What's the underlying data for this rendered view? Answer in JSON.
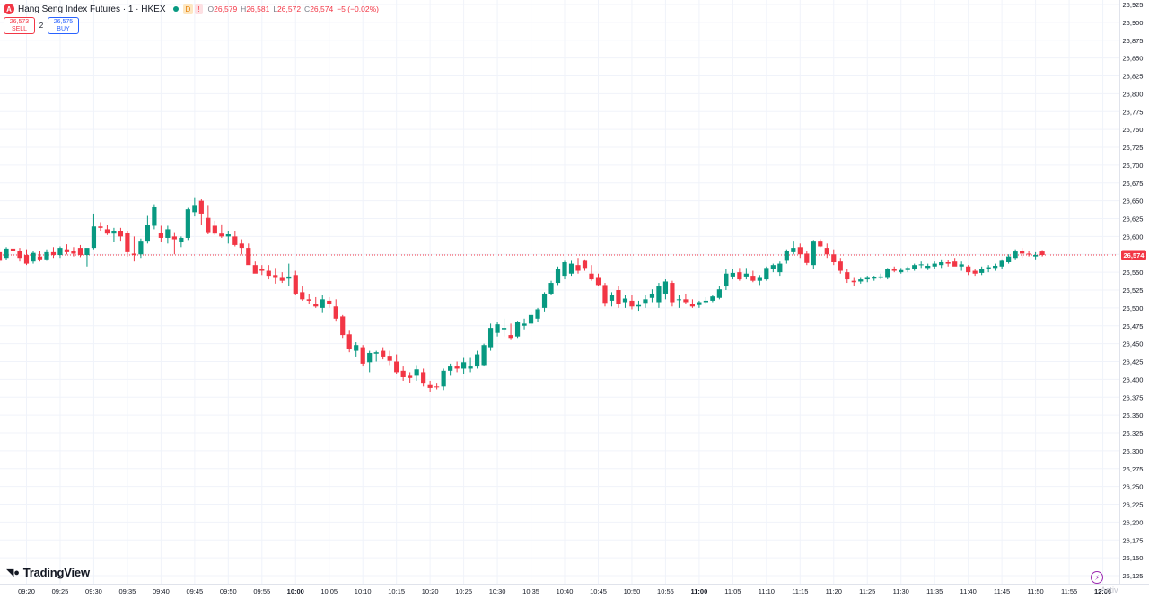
{
  "header": {
    "icon_letter": "A",
    "title": "Hang Seng Index Futures · 1 · HKEX",
    "badge_d": "D",
    "badge_alert": "!",
    "o_label": "O",
    "o_value": "26,579",
    "h_label": "H",
    "h_value": "26,581",
    "l_label": "L",
    "l_value": "26,572",
    "c_label": "C",
    "c_value": "26,574",
    "change": "−5 (−0.02%)"
  },
  "trade": {
    "sell_price": "26,573",
    "sell_label": "SELL",
    "spread": "2",
    "buy_price": "26,575",
    "buy_label": "BUY"
  },
  "branding": {
    "logo_text": "TradingView",
    "watermark": "Activ"
  },
  "colors": {
    "up": "#089981",
    "down": "#f23645",
    "grid": "#f0f3fa",
    "axis_text": "#131722"
  },
  "chart_data": {
    "type": "candlestick",
    "title": "Hang Seng Index Futures · 1 · HKEX",
    "xlabel": "",
    "ylabel": "",
    "ylim": [
      26125,
      26925
    ],
    "y_ticks": [
      "26,925",
      "26,900",
      "26,875",
      "26,850",
      "26,825",
      "26,800",
      "26,775",
      "26,750",
      "26,725",
      "26,700",
      "26,675",
      "26,650",
      "26,625",
      "26,600",
      "26,575",
      "26,550",
      "26,525",
      "26,500",
      "26,475",
      "26,450",
      "26,425",
      "26,400",
      "26,375",
      "26,350",
      "26,325",
      "26,300",
      "26,275",
      "26,250",
      "26,225",
      "26,200",
      "26,175",
      "26,150",
      "26,125"
    ],
    "x_ticks": [
      "09:20",
      "09:25",
      "09:30",
      "09:35",
      "09:40",
      "09:45",
      "09:50",
      "09:55",
      "10:00",
      "10:05",
      "10:10",
      "10:15",
      "10:20",
      "10:25",
      "10:30",
      "10:35",
      "10:40",
      "10:45",
      "10:50",
      "10:55",
      "11:00",
      "11:05",
      "11:10",
      "11:15",
      "11:20",
      "11:25",
      "11:30",
      "11:35",
      "11:40",
      "11:45",
      "11:50",
      "11:55",
      "12:00"
    ],
    "x_ticks_bold": [
      "10:00",
      "11:00",
      "12:00"
    ],
    "start_time": "09:16",
    "last_price": 26574,
    "last_price_label": "26,574",
    "grid": true,
    "candles": [
      [
        26578,
        26584,
        26563,
        26566
      ],
      [
        26570,
        26585,
        26567,
        26583
      ],
      [
        26583,
        26593,
        26575,
        26580
      ],
      [
        26580,
        26584,
        26565,
        26570
      ],
      [
        26574,
        26582,
        26560,
        26562
      ],
      [
        26565,
        26580,
        26562,
        26577
      ],
      [
        26572,
        26580,
        26565,
        26568
      ],
      [
        26568,
        26582,
        26566,
        26578
      ],
      [
        26578,
        26585,
        26570,
        26574
      ],
      [
        26574,
        26586,
        26570,
        26584
      ],
      [
        26582,
        26589,
        26575,
        26578
      ],
      [
        26580,
        26585,
        26572,
        26576
      ],
      [
        26584,
        26588,
        26571,
        26574
      ],
      [
        26574,
        26578,
        26558,
        26584
      ],
      [
        26584,
        26632,
        26582,
        26614
      ],
      [
        26614,
        26620,
        26608,
        26612
      ],
      [
        26610,
        26616,
        26602,
        26604
      ],
      [
        26604,
        26612,
        26592,
        26608
      ],
      [
        26608,
        26612,
        26594,
        26600
      ],
      [
        26605,
        26608,
        26572,
        26578
      ],
      [
        26576,
        26600,
        26565,
        26574
      ],
      [
        26575,
        26597,
        26570,
        26594
      ],
      [
        26594,
        26630,
        26590,
        26616
      ],
      [
        26615,
        26645,
        26610,
        26642
      ],
      [
        26605,
        26615,
        26592,
        26598
      ],
      [
        26598,
        26615,
        26590,
        26610
      ],
      [
        26600,
        26606,
        26575,
        26596
      ],
      [
        26592,
        26600,
        26585,
        26598
      ],
      [
        26598,
        26640,
        26595,
        26638
      ],
      [
        26634,
        26655,
        26628,
        26644
      ],
      [
        26650,
        26652,
        26616,
        26632
      ],
      [
        26626,
        26644,
        26603,
        26606
      ],
      [
        26615,
        26622,
        26602,
        26604
      ],
      [
        26604,
        26617,
        26598,
        26600
      ],
      [
        26600,
        26608,
        26590,
        26603
      ],
      [
        26600,
        26608,
        26586,
        26588
      ],
      [
        26590,
        26596,
        26575,
        26584
      ],
      [
        26584,
        26590,
        26563,
        26560
      ],
      [
        26560,
        26565,
        26552,
        26548
      ],
      [
        26555,
        26560,
        26546,
        26552
      ],
      [
        26552,
        26560,
        26540,
        26545
      ],
      [
        26546,
        26556,
        26534,
        26542
      ],
      [
        26542,
        26550,
        26535,
        26538
      ],
      [
        26541,
        26562,
        26530,
        26544
      ],
      [
        26546,
        26552,
        26518,
        26520
      ],
      [
        26522,
        26530,
        26510,
        26512
      ],
      [
        26512,
        26520,
        26505,
        26510
      ],
      [
        26505,
        26515,
        26500,
        26502
      ],
      [
        26500,
        26518,
        26494,
        26512
      ],
      [
        26510,
        26515,
        26500,
        26505
      ],
      [
        26502,
        26512,
        26482,
        26485
      ],
      [
        26488,
        26490,
        26458,
        26462
      ],
      [
        26463,
        26468,
        26438,
        26442
      ],
      [
        26440,
        26452,
        26432,
        26448
      ],
      [
        26445,
        26448,
        26418,
        26422
      ],
      [
        26424,
        26440,
        26410,
        26437
      ],
      [
        26436,
        26440,
        26425,
        26438
      ],
      [
        26440,
        26445,
        26428,
        26432
      ],
      [
        26433,
        26440,
        26420,
        26426
      ],
      [
        26425,
        26435,
        26408,
        26410
      ],
      [
        26412,
        26418,
        26398,
        26403
      ],
      [
        26405,
        26410,
        26395,
        26402
      ],
      [
        26405,
        26420,
        26398,
        26414
      ],
      [
        26410,
        26415,
        26390,
        26394
      ],
      [
        26392,
        26398,
        26382,
        26388
      ],
      [
        26390,
        26394,
        26386,
        26389
      ],
      [
        26390,
        26415,
        26385,
        26412
      ],
      [
        26412,
        26422,
        26405,
        26418
      ],
      [
        26418,
        26425,
        26410,
        26415
      ],
      [
        26415,
        26430,
        26408,
        26424
      ],
      [
        26415,
        26430,
        26410,
        26418
      ],
      [
        26418,
        26440,
        26415,
        26435
      ],
      [
        26420,
        26450,
        26418,
        26448
      ],
      [
        26445,
        26478,
        26440,
        26472
      ],
      [
        26465,
        26480,
        26460,
        26477
      ],
      [
        26470,
        26485,
        26460,
        26472
      ],
      [
        26462,
        26478,
        26455,
        26458
      ],
      [
        26460,
        26482,
        26458,
        26480
      ],
      [
        26475,
        26485,
        26470,
        26478
      ],
      [
        26478,
        26495,
        26475,
        26490
      ],
      [
        26485,
        26500,
        26480,
        26498
      ],
      [
        26500,
        26522,
        26495,
        26520
      ],
      [
        26520,
        26538,
        26518,
        26535
      ],
      [
        26535,
        26558,
        26532,
        26554
      ],
      [
        26545,
        26566,
        26540,
        26564
      ],
      [
        26548,
        26566,
        26545,
        26562
      ],
      [
        26560,
        26570,
        26548,
        26552
      ],
      [
        26566,
        26568,
        26552,
        26556
      ],
      [
        26548,
        26560,
        26538,
        26540
      ],
      [
        26542,
        26548,
        26530,
        26532
      ],
      [
        26532,
        26535,
        26502,
        26507
      ],
      [
        26510,
        26522,
        26502,
        26518
      ],
      [
        26525,
        26530,
        26500,
        26505
      ],
      [
        26508,
        26518,
        26500,
        26513
      ],
      [
        26510,
        26518,
        26498,
        26502
      ],
      [
        26502,
        26510,
        26496,
        26504
      ],
      [
        26507,
        26518,
        26500,
        26512
      ],
      [
        26514,
        26526,
        26508,
        26520
      ],
      [
        26508,
        26535,
        26500,
        26530
      ],
      [
        26520,
        26540,
        26512,
        26537
      ],
      [
        26535,
        26538,
        26502,
        26508
      ],
      [
        26512,
        26518,
        26500,
        26512
      ],
      [
        26512,
        26520,
        26505,
        26508
      ],
      [
        26505,
        26512,
        26500,
        26502
      ],
      [
        26504,
        26510,
        26500,
        26508
      ],
      [
        26508,
        26515,
        26505,
        26510
      ],
      [
        26510,
        26518,
        26508,
        26516
      ],
      [
        26514,
        26530,
        26512,
        26526
      ],
      [
        26530,
        26555,
        26525,
        26548
      ],
      [
        26544,
        26555,
        26540,
        26549
      ],
      [
        26550,
        26556,
        26538,
        26540
      ],
      [
        26544,
        26556,
        26540,
        26548
      ],
      [
        26545,
        26552,
        26536,
        26538
      ],
      [
        26538,
        26546,
        26532,
        26542
      ],
      [
        26540,
        26558,
        26538,
        26556
      ],
      [
        26555,
        26562,
        26550,
        26560
      ],
      [
        26550,
        26565,
        26545,
        26562
      ],
      [
        26566,
        26582,
        26562,
        26580
      ],
      [
        26578,
        26594,
        26575,
        26584
      ],
      [
        26585,
        26590,
        26570,
        26575
      ],
      [
        26576,
        26580,
        26560,
        26563
      ],
      [
        26560,
        26595,
        26555,
        26594
      ],
      [
        26594,
        26596,
        26585,
        26586
      ],
      [
        26584,
        26590,
        26570,
        26575
      ],
      [
        26575,
        26582,
        26560,
        26564
      ],
      [
        26565,
        26570,
        26548,
        26552
      ],
      [
        26550,
        26555,
        26535,
        26540
      ],
      [
        26538,
        26542,
        26530,
        26536
      ],
      [
        26537,
        26542,
        26534,
        26540
      ],
      [
        26540,
        26545,
        26536,
        26542
      ],
      [
        26541,
        26545,
        26538,
        26543
      ],
      [
        26542,
        26548,
        26540,
        26544
      ],
      [
        26542,
        26556,
        26540,
        26554
      ],
      [
        26554,
        26558,
        26550,
        26552
      ],
      [
        26550,
        26556,
        26548,
        26553
      ],
      [
        26553,
        26558,
        26550,
        26556
      ],
      [
        26555,
        26562,
        26552,
        26560
      ],
      [
        26560,
        26565,
        26556,
        26561
      ],
      [
        26556,
        26562,
        26553,
        26559
      ],
      [
        26558,
        26565,
        26555,
        26562
      ],
      [
        26560,
        26568,
        26556,
        26564
      ],
      [
        26564,
        26567,
        26558,
        26562
      ],
      [
        26565,
        26570,
        26560,
        26558
      ],
      [
        26558,
        26565,
        26552,
        26561
      ],
      [
        26558,
        26560,
        26546,
        26550
      ],
      [
        26552,
        26555,
        26545,
        26548
      ],
      [
        26549,
        26558,
        26546,
        26554
      ],
      [
        26554,
        26560,
        26550,
        26557
      ],
      [
        26556,
        26562,
        26552,
        26559
      ],
      [
        26558,
        26568,
        26555,
        26566
      ],
      [
        26564,
        26575,
        26562,
        26572
      ],
      [
        26570,
        26582,
        26568,
        26579
      ],
      [
        26580,
        26584,
        26570,
        26576
      ],
      [
        26576,
        26580,
        26572,
        26575
      ],
      [
        26572,
        26578,
        26568,
        26574
      ],
      [
        26579,
        26581,
        26572,
        26574
      ]
    ]
  }
}
